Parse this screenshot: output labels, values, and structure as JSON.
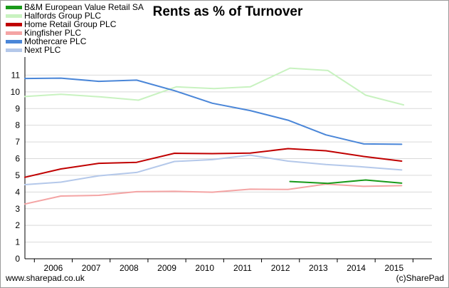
{
  "chart_data": {
    "type": "line",
    "title": "Rents as % of Turnover",
    "xlabel": "",
    "ylabel": "",
    "x_ticks": [
      "2006",
      "2007",
      "2008",
      "2009",
      "2010",
      "2011",
      "2012",
      "2013",
      "2014",
      "2015"
    ],
    "xlim": [
      2005.25,
      2016.0
    ],
    "ylim": [
      0,
      12
    ],
    "y_ticks": [
      0,
      1,
      2,
      3,
      4,
      5,
      6,
      7,
      8,
      9,
      10,
      11
    ],
    "grid": true,
    "legend_position": "top-left",
    "series": [
      {
        "name": "B&M European Value Retail SA",
        "color": "#1a9a1a",
        "x": [
          2012.25,
          2013.25,
          2014.25,
          2015.2
        ],
        "y": [
          4.63,
          4.52,
          4.72,
          4.53
        ]
      },
      {
        "name": "Halfords Group PLC",
        "color": "#c8f2c0",
        "x": [
          2005.25,
          2006.2,
          2007.25,
          2008.25,
          2009.25,
          2010.25,
          2011.2,
          2012.25,
          2013.25,
          2014.25,
          2015.25
        ],
        "y": [
          9.72,
          9.85,
          9.7,
          9.5,
          10.3,
          10.2,
          10.3,
          11.42,
          11.28,
          9.8,
          9.22
        ]
      },
      {
        "name": "Home Retail Group PLC",
        "color": "#c00000",
        "x": [
          2005.25,
          2006.2,
          2007.2,
          2008.2,
          2009.2,
          2010.2,
          2011.2,
          2012.2,
          2013.2,
          2014.2,
          2015.2
        ],
        "y": [
          4.88,
          5.38,
          5.72,
          5.78,
          6.32,
          6.3,
          6.33,
          6.6,
          6.47,
          6.13,
          5.85
        ]
      },
      {
        "name": "Kingfisher PLC",
        "color": "#f4a4a4",
        "x": [
          2005.25,
          2006.2,
          2007.2,
          2008.2,
          2009.2,
          2010.2,
          2011.2,
          2012.2,
          2013.2,
          2014.2,
          2015.2
        ],
        "y": [
          3.28,
          3.76,
          3.8,
          4.02,
          4.04,
          3.99,
          4.17,
          4.15,
          4.47,
          4.34,
          4.38
        ]
      },
      {
        "name": "Mothercare PLC",
        "color": "#4a86d8",
        "x": [
          2005.25,
          2006.2,
          2007.2,
          2008.2,
          2009.2,
          2010.2,
          2011.2,
          2012.2,
          2013.2,
          2014.2,
          2015.2
        ],
        "y": [
          10.8,
          10.82,
          10.63,
          10.7,
          10.07,
          9.32,
          8.88,
          8.3,
          7.42,
          6.88,
          6.86
        ]
      },
      {
        "name": "Next PLC",
        "color": "#b4c8ea",
        "x": [
          2005.25,
          2006.2,
          2007.2,
          2008.2,
          2009.2,
          2010.2,
          2011.2,
          2012.2,
          2013.2,
          2014.2,
          2015.2
        ],
        "y": [
          4.44,
          4.59,
          4.97,
          5.17,
          5.83,
          5.94,
          6.21,
          5.85,
          5.65,
          5.5,
          5.32
        ]
      }
    ]
  },
  "footer": {
    "left": "www.sharepad.co.uk",
    "right": "(c)SharePad"
  }
}
